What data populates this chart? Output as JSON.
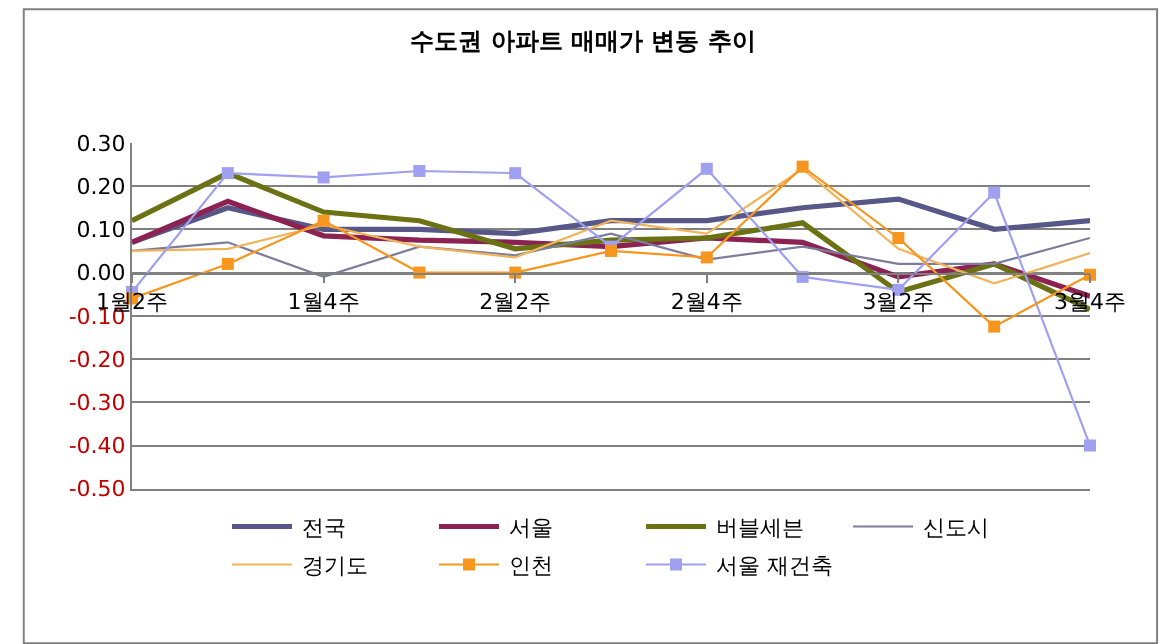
{
  "chart_data": {
    "type": "line",
    "title": "수도권 아파트 매매가 변동 추이",
    "categories": [
      "1월2주",
      null,
      "1월4주",
      null,
      "2월2주",
      null,
      "2월4주",
      null,
      "3월2주",
      null,
      "3월4주"
    ],
    "series": [
      {
        "name": "전국",
        "color": "#585888",
        "marker": "none",
        "values": [
          0.07,
          0.15,
          0.1,
          0.1,
          0.09,
          0.12,
          0.12,
          0.15,
          0.17,
          0.1,
          0.12
        ]
      },
      {
        "name": "서울",
        "color": "#8b2252",
        "marker": "none",
        "values": [
          0.07,
          0.165,
          0.085,
          0.075,
          0.07,
          0.06,
          0.08,
          0.07,
          -0.01,
          0.02,
          -0.055
        ]
      },
      {
        "name": "버블세븐",
        "color": "#6b7214",
        "marker": "none",
        "values": [
          0.12,
          0.23,
          0.14,
          0.12,
          0.055,
          0.075,
          0.08,
          0.115,
          -0.045,
          0.02,
          -0.085
        ]
      },
      {
        "name": "신도시",
        "color": "#7c7c9c",
        "marker": "none",
        "values": [
          0.05,
          0.07,
          -0.01,
          0.06,
          0.04,
          0.09,
          0.03,
          0.06,
          0.02,
          0.02,
          0.08
        ]
      },
      {
        "name": "경기도",
        "color": "#f2b45a",
        "marker": "none",
        "values": [
          0.05,
          0.055,
          0.11,
          0.06,
          0.035,
          0.12,
          0.09,
          0.24,
          0.055,
          -0.025,
          0.045
        ]
      },
      {
        "name": "인천",
        "color": "#f7961e",
        "marker": "square",
        "values": [
          -0.06,
          0.02,
          0.12,
          0.0,
          0.0,
          0.05,
          0.035,
          0.245,
          0.08,
          -0.125,
          -0.005
        ]
      },
      {
        "name": "서울 재건축",
        "color": "#a0a0f0",
        "marker": "square",
        "values": [
          -0.045,
          0.23,
          0.22,
          0.235,
          0.23,
          0.06,
          0.24,
          -0.01,
          -0.04,
          0.185,
          -0.4
        ]
      }
    ],
    "ylim": [
      -0.5,
      0.3
    ],
    "yticks": [
      {
        "value": 0.3,
        "label": "0.30"
      },
      {
        "value": 0.2,
        "label": "0.20"
      },
      {
        "value": 0.1,
        "label": "0.10"
      },
      {
        "value": 0.0,
        "label": "0.00"
      },
      {
        "value": -0.1,
        "label": "-0.10"
      },
      {
        "value": -0.2,
        "label": "-0.20"
      },
      {
        "value": -0.3,
        "label": "-0.30"
      },
      {
        "value": -0.4,
        "label": "-0.40"
      },
      {
        "value": -0.5,
        "label": "-0.50"
      }
    ],
    "grid": "y",
    "legend": "bottom",
    "line_style": "solid"
  }
}
